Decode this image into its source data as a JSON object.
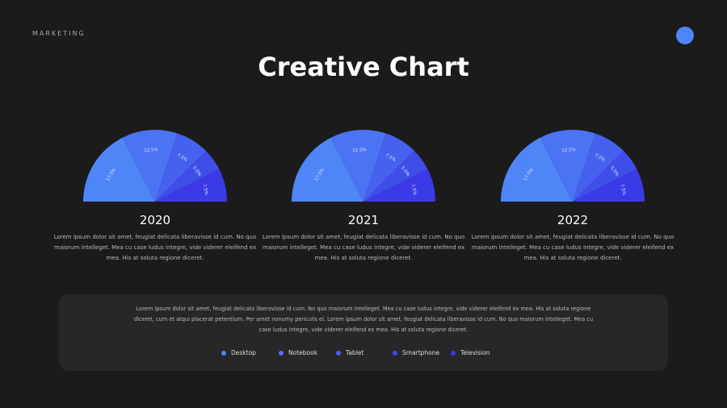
{
  "header": {
    "brand": "MARKETING",
    "title": "Creative Chart"
  },
  "chart_data": [
    {
      "type": "pie",
      "variant": "semicircle",
      "title": "2020",
      "categories": [
        "Desktop",
        "Notebook",
        "Tablet",
        "Smartphone",
        "Television"
      ],
      "values": [
        17.5,
        12.5,
        7.5,
        5.0,
        7.5
      ],
      "labels": [
        "17.5%",
        "12.5%",
        "7.5%",
        "5.0%",
        "7.5%"
      ]
    },
    {
      "type": "pie",
      "variant": "semicircle",
      "title": "2021",
      "categories": [
        "Desktop",
        "Notebook",
        "Tablet",
        "Smartphone",
        "Television"
      ],
      "values": [
        17.5,
        12.5,
        7.5,
        5.0,
        7.5
      ],
      "labels": [
        "17.5%",
        "12.5%",
        "7.5%",
        "5.0%",
        "7.5%"
      ]
    },
    {
      "type": "pie",
      "variant": "semicircle",
      "title": "2022",
      "categories": [
        "Desktop",
        "Notebook",
        "Tablet",
        "Smartphone",
        "Television"
      ],
      "values": [
        17.5,
        12.5,
        7.5,
        5.0,
        7.5
      ],
      "labels": [
        "17.5%",
        "12.5%",
        "7.5%",
        "5.0%",
        "7.5%"
      ]
    }
  ],
  "colors": [
    "#4f86f7",
    "#4a74f3",
    "#4561ee",
    "#3f4ee9",
    "#3a3ae6"
  ],
  "chart_desc": "Lorem ipsum dolor sit amet, feugiat delicata liberavisse id cum. No quo maiorum intelleget. Mea cu case ludus integre, vide viderer eleifend ex mea. His at soluta regione diceret.",
  "panel": {
    "text": "Lorem ipsum dolor sit amet, feugiat delicata liberavisse id cum. No quo maiorum intelleget. Mea cu case ludus integre, vide viderer eleifend ex mea. His at soluta regione diceret, cum et atqui placerat petentium. Per amet nonumy periculis ei. Lorem ipsum dolor sit amet, feugiat delicata liberavisse id cum. No quo maiorum intelleget. Mea cu case ludus integre, vide viderer eleifend ex mea. His at soluta regione diceret."
  },
  "legend": [
    "Desktop",
    "Notebook",
    "Tablet",
    "Smartphone",
    "Television"
  ]
}
